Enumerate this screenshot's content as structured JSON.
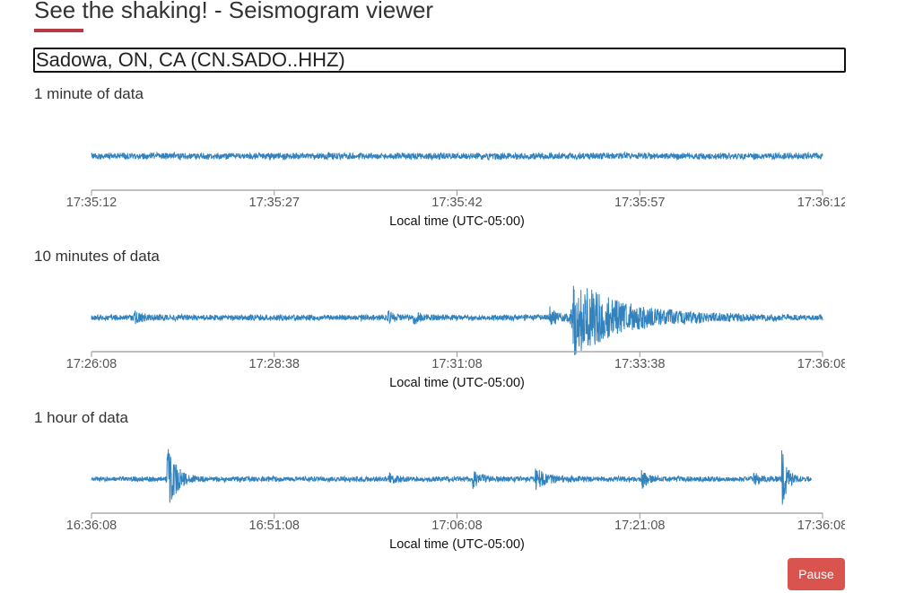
{
  "header": {
    "title": "See the shaking! - Seismogram viewer"
  },
  "station_select": {
    "value": "Sadowa, ON, CA (CN.SADO..HHZ)"
  },
  "pause_button": {
    "label": "Pause"
  },
  "colors": {
    "trace": "#3182bd",
    "accent": "#b53a45",
    "button": "#d9534f"
  },
  "chart_data": [
    {
      "type": "line",
      "title": "1 minute of data",
      "xlabel": "Local time (UTC-05:00)",
      "ylabel": "",
      "tick_labels": [
        "17:35:12",
        "17:35:27",
        "17:35:42",
        "17:35:57",
        "17:36:12"
      ],
      "duration_s": 60,
      "data_end_s": 60,
      "ylim": [
        -10,
        10
      ],
      "base_noise": 1.0,
      "events": []
    },
    {
      "type": "line",
      "title": "10 minutes of data",
      "xlabel": "Local time (UTC-05:00)",
      "ylabel": "",
      "tick_labels": [
        "17:26:08",
        "17:28:38",
        "17:31:08",
        "17:33:38",
        "17:36:08"
      ],
      "duration_s": 600,
      "data_end_s": 600,
      "ylim": [
        -10,
        10
      ],
      "base_noise": 0.9,
      "events": [
        {
          "t": 35,
          "amp": 1.2,
          "decay": 8
        },
        {
          "t": 243,
          "amp": 2.5,
          "decay": 3
        },
        {
          "t": 264,
          "amp": 1.2,
          "decay": 8
        },
        {
          "t": 376,
          "amp": 2.5,
          "decay": 6
        },
        {
          "t": 395,
          "amp": 10,
          "decay": 40
        }
      ]
    },
    {
      "type": "line",
      "title": "1 hour of data",
      "xlabel": "Local time (UTC-05:00)",
      "ylabel": "",
      "tick_labels": [
        "16:36:08",
        "16:51:08",
        "17:06:08",
        "17:21:08",
        "17:36:08"
      ],
      "duration_s": 3600,
      "data_end_s": 3545,
      "ylim": [
        -10,
        10
      ],
      "base_noise": 0.8,
      "events": [
        {
          "t": 371,
          "amp": 10,
          "decay": 40
        },
        {
          "t": 1462,
          "amp": 1.3,
          "decay": 30
        },
        {
          "t": 1877,
          "amp": 2.2,
          "decay": 40
        },
        {
          "t": 2186,
          "amp": 2.4,
          "decay": 60
        },
        {
          "t": 2708,
          "amp": 2.5,
          "decay": 30
        },
        {
          "t": 3260,
          "amp": 1.8,
          "decay": 30
        },
        {
          "t": 3397,
          "amp": 9,
          "decay": 25
        }
      ]
    }
  ]
}
